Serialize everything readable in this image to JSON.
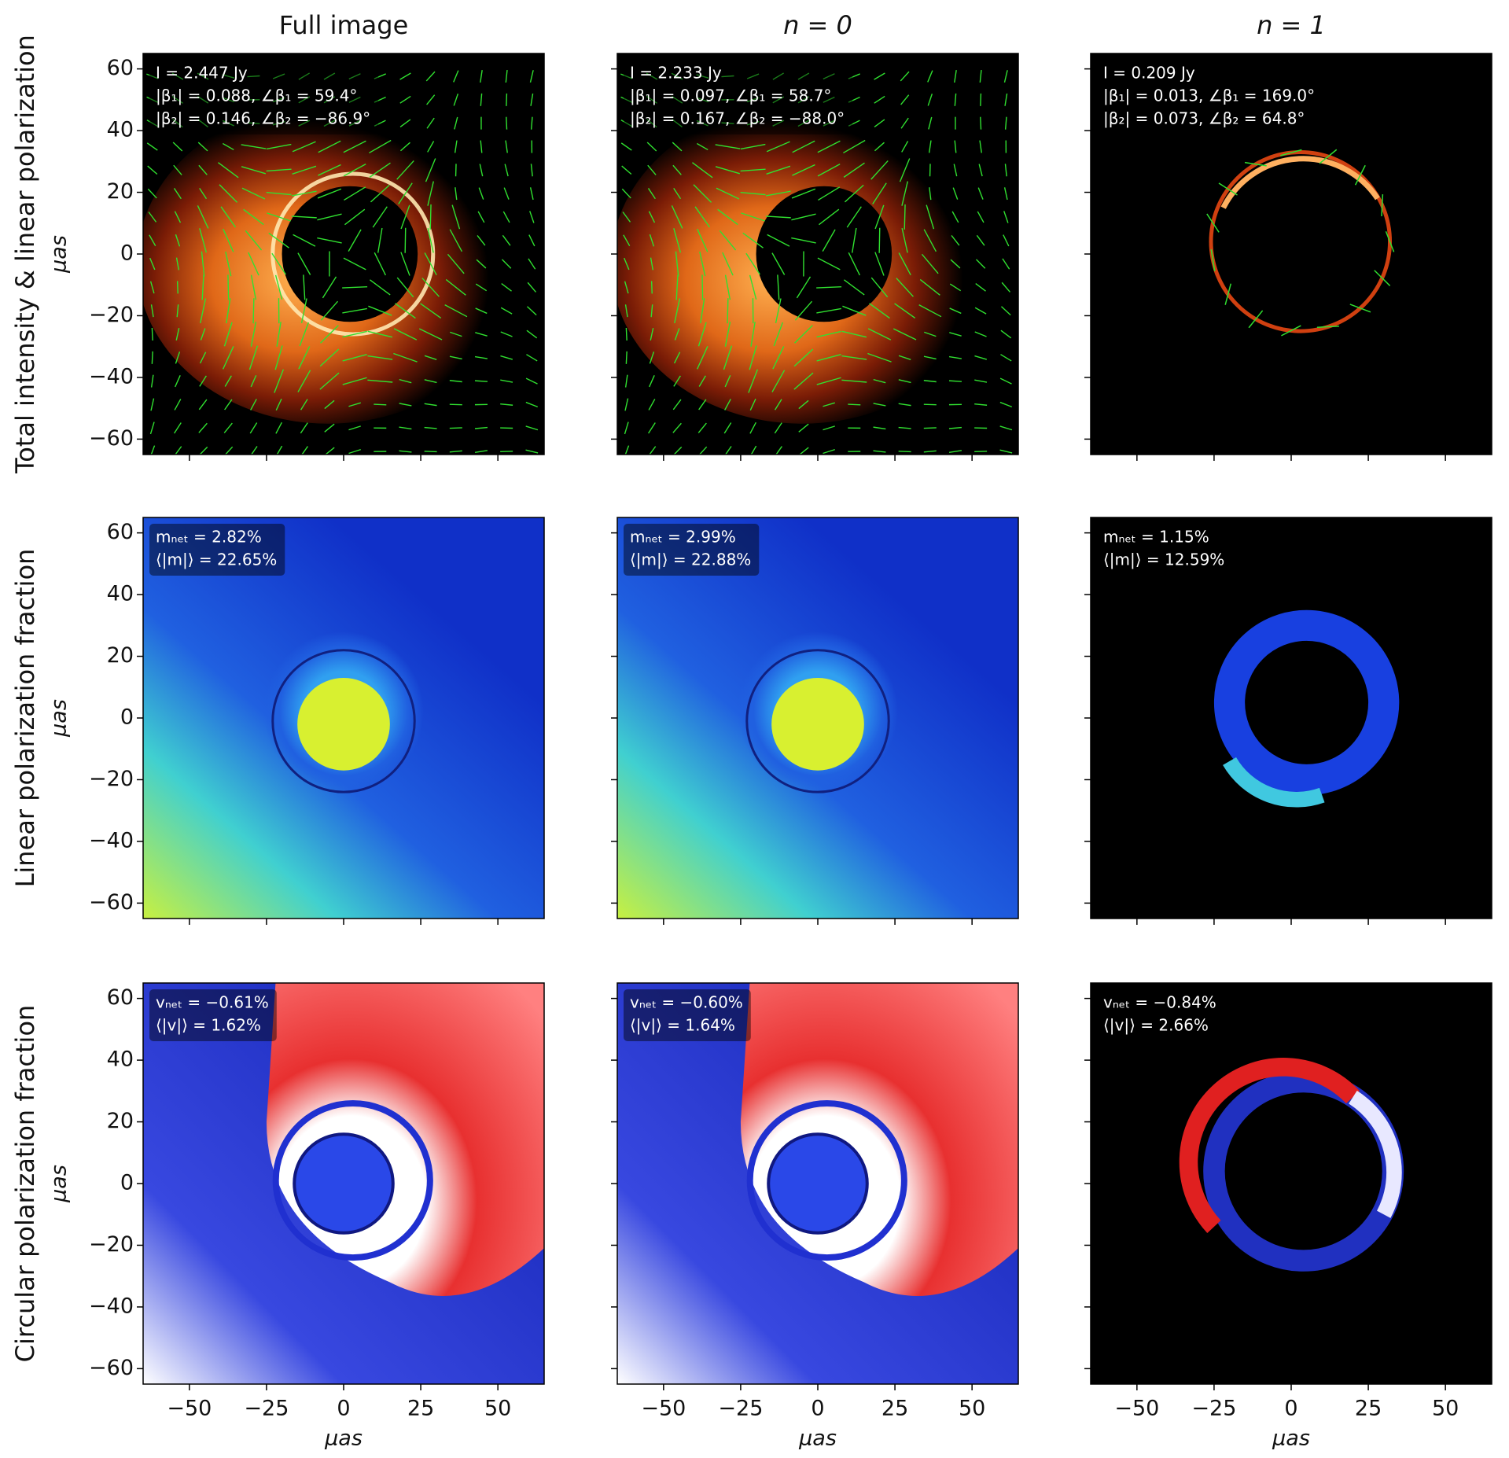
{
  "chart_data": {
    "type": "image",
    "columns": [
      "Full image",
      "n = 0",
      "n = 1"
    ],
    "rows": [
      "Total intensity & linear polarization",
      "Linear polarization fraction",
      "Circular polarization fraction"
    ],
    "xlabel": "μas",
    "ylabel": "μas",
    "xlim": [
      -65,
      65
    ],
    "ylim": [
      -65,
      65
    ],
    "xticks": [
      {
        "value": -50,
        "label": "−50"
      },
      {
        "value": -25,
        "label": "−25"
      },
      0,
      25,
      50
    ],
    "yticks": [
      {
        "value": -60,
        "label": "−60"
      },
      {
        "value": -40,
        "label": "−40"
      },
      {
        "value": -20,
        "label": "−20"
      },
      0,
      20,
      40,
      60
    ],
    "panels": [
      [
        {
          "annotations": [
            "I = 2.447 Jy",
            "|β₁| = 0.088,  ∠β₁ = 59.4°",
            "|β₂| = 0.146,  ∠β₂ = −86.9°"
          ]
        },
        {
          "annotations": [
            "I = 2.233 Jy",
            "|β₁| = 0.097,  ∠β₁ = 58.7°",
            "|β₂| = 0.167,  ∠β₂ = −88.0°"
          ]
        },
        {
          "annotations": [
            "I = 0.209 Jy",
            "|β₁| = 0.013,  ∠β₁ = 169.0°",
            "|β₂| = 0.073,  ∠β₂ = 64.8°"
          ]
        }
      ],
      [
        {
          "annotations": [
            "mₙₑₜ = 2.82%",
            "⟨|m|⟩ = 22.65%"
          ]
        },
        {
          "annotations": [
            "mₙₑₜ = 2.99%",
            "⟨|m|⟩ = 22.88%"
          ]
        },
        {
          "annotations": [
            "mₙₑₜ = 1.15%",
            "⟨|m|⟩ = 12.59%"
          ]
        }
      ],
      [
        {
          "annotations": [
            "vₙₑₜ = −0.61%",
            "⟨|v|⟩ = 1.62%"
          ]
        },
        {
          "annotations": [
            "vₙₑₜ = −0.60%",
            "⟨|v|⟩ = 1.64%"
          ]
        },
        {
          "annotations": [
            "vₙₑₜ = −0.84%",
            "⟨|v|⟩ = 2.66%"
          ]
        }
      ]
    ]
  }
}
